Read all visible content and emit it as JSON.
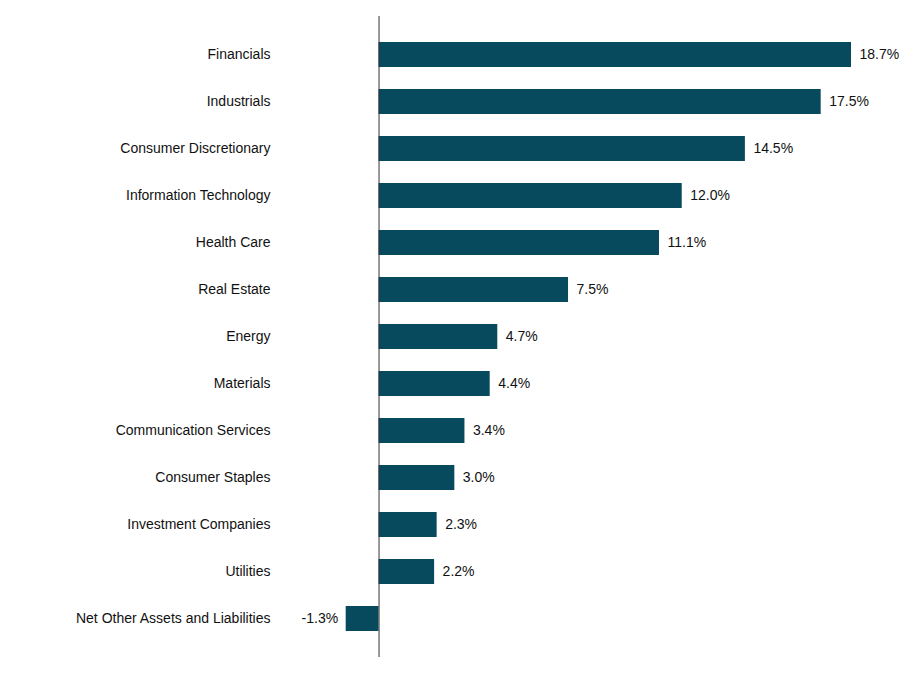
{
  "chart_data": {
    "type": "bar",
    "orientation": "horizontal",
    "categories": [
      "Financials",
      "Industrials",
      "Consumer Discretionary",
      "Information Technology",
      "Health Care",
      "Real Estate",
      "Energy",
      "Materials",
      "Communication Services",
      "Consumer Staples",
      "Investment Companies",
      "Utilities",
      "Net Other Assets and Liabilities"
    ],
    "values": [
      18.7,
      17.5,
      14.5,
      12.0,
      11.1,
      7.5,
      4.7,
      4.4,
      3.4,
      3.0,
      2.3,
      2.2,
      -1.3
    ],
    "value_labels": [
      "18.7%",
      "17.5%",
      "14.5%",
      "12.0%",
      "11.1%",
      "7.5%",
      "4.7%",
      "4.4%",
      "3.4%",
      "3.0%",
      "2.3%",
      "2.2%",
      "-1.3%"
    ],
    "color": "#074a5e",
    "xlim": [
      -3.9,
      18.7
    ],
    "xticks": [
      0
    ],
    "data_labels": true,
    "tick_labels": "y",
    "grid": false
  }
}
